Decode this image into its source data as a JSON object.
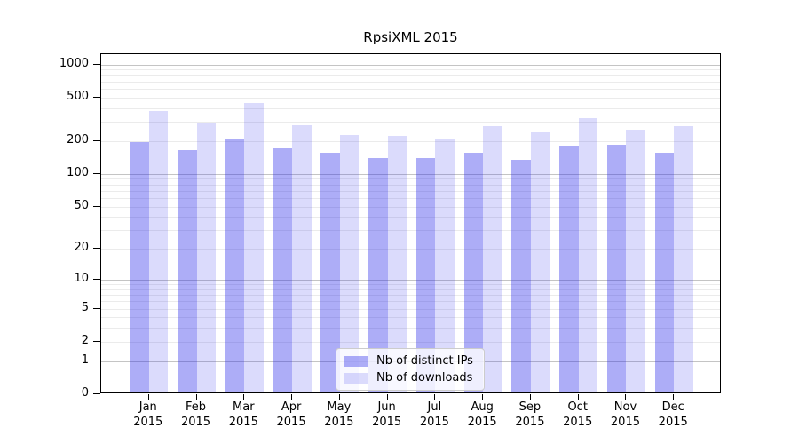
{
  "title": "RpsiXML 2015",
  "chart_data": {
    "type": "bar",
    "title": "RpsiXML 2015",
    "scale": "log10(1+y)",
    "grid": "horizontal",
    "legend_position": "lower center",
    "categories": [
      "Jan",
      "Feb",
      "Mar",
      "Apr",
      "May",
      "Jun",
      "Jul",
      "Aug",
      "Sep",
      "Oct",
      "Nov",
      "Dec"
    ],
    "year": "2015",
    "series": [
      {
        "name": "Nb of distinct IPs",
        "color": "rgba(40,40,235,0.38)",
        "values": [
          190,
          160,
          200,
          165,
          150,
          135,
          135,
          150,
          130,
          175,
          180,
          150
        ]
      },
      {
        "name": "Nb of downloads",
        "color": "rgba(40,40,235,0.17)",
        "values": [
          360,
          285,
          430,
          270,
          220,
          215,
          200,
          265,
          230,
          310,
          245,
          265
        ]
      }
    ],
    "y_ticks": [
      0,
      1,
      2,
      5,
      10,
      20,
      50,
      100,
      200,
      500,
      1000
    ],
    "y_tick_labels": [
      "0",
      "1",
      "2",
      "5",
      "10",
      "20",
      "50",
      "100",
      "200",
      "500",
      "1000"
    ],
    "y_minor_gridlines": [
      2,
      3,
      4,
      5,
      6,
      7,
      8,
      9,
      20,
      30,
      40,
      50,
      60,
      70,
      80,
      90,
      200,
      300,
      400,
      500,
      600,
      700,
      800,
      900
    ],
    "y_major_gridlines": [
      1,
      10,
      100,
      1000
    ],
    "ylim": [
      0,
      1240
    ],
    "xlabel": "",
    "ylabel": ""
  },
  "colors": {
    "bar_ips": "rgba(40,40,235,0.38)",
    "bar_downloads": "rgba(40,40,235,0.17)",
    "grid_minor": "#ebebeb",
    "grid_major": "#c4c4c4",
    "axis": "#000000",
    "background": "#ffffff"
  }
}
